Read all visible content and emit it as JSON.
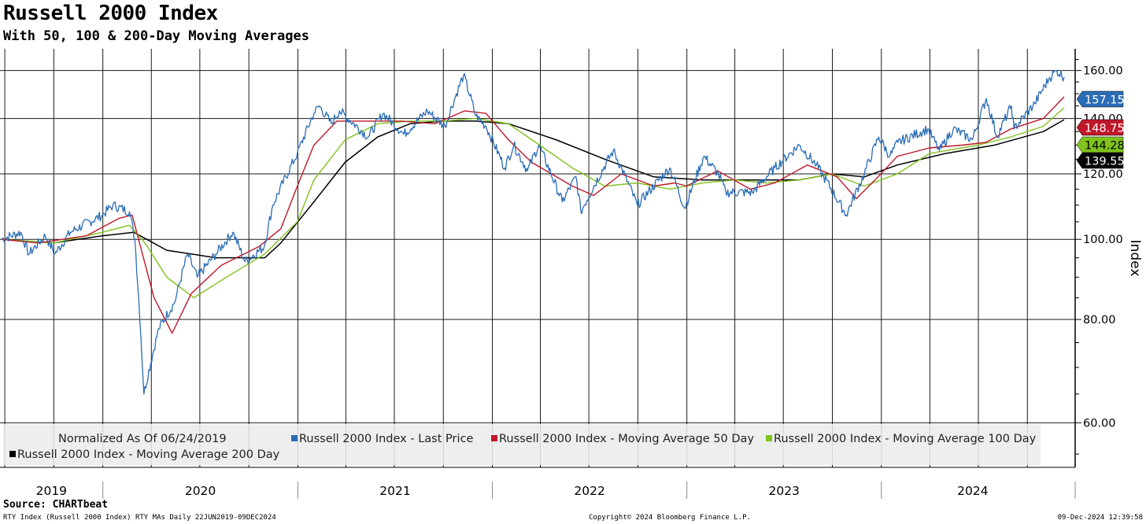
{
  "title": "Russell 2000 Index",
  "subtitle": "With 50, 100 & 200-Day Moving Averages",
  "source": "Source: CHARTbeat",
  "footer": {
    "left": "RTY Index (Russell 2000 Index) RTY MAs  Daily 22JUN2019-09DEC2024",
    "center": "Copyright© 2024 Bloomberg Finance L.P.",
    "right": "09-Dec-2024 12:39:58"
  },
  "colors": {
    "price": "#2a6cb5",
    "ma50": "#c0182a",
    "ma100": "#7fc31c",
    "ma200": "#000000"
  },
  "chart_data": {
    "type": "line",
    "ylabel": "Index",
    "ylim": [
      53,
      170
    ],
    "y_scale": "log",
    "y_ticks": [
      "60.00",
      "80.00",
      "100.00",
      "120.00",
      "140.00",
      "160.00"
    ],
    "y_tick_values": [
      60,
      80,
      100,
      120,
      140,
      160
    ],
    "x_range": [
      "2019-06-22",
      "2024-12-09"
    ],
    "x_year_labels": [
      "2019",
      "2020",
      "2021",
      "2022",
      "2023",
      "2024"
    ],
    "grid": true,
    "legend_placement": "bottom-left",
    "legend_note": "Normalized As Of 06/24/2019",
    "last_value_labels": [
      {
        "series": "price",
        "value": 157.15,
        "text": "157.15"
      },
      {
        "series": "ma50",
        "value": 148.75,
        "text": "148.75"
      },
      {
        "series": "ma100",
        "value": 144.28,
        "text": "144.28"
      },
      {
        "series": "ma200",
        "value": 139.55,
        "text": "139.55"
      }
    ],
    "series": [
      {
        "key": "price",
        "name": "Russell 2000 Index - Last Price",
        "points": [
          [
            "2019-06-24",
            100
          ],
          [
            "2019-07-31",
            102
          ],
          [
            "2019-08-15",
            96
          ],
          [
            "2019-09-15",
            101
          ],
          [
            "2019-10-03",
            96
          ],
          [
            "2019-11-01",
            102
          ],
          [
            "2019-12-31",
            107
          ],
          [
            "2020-01-20",
            110
          ],
          [
            "2020-02-20",
            108
          ],
          [
            "2020-03-01",
            100
          ],
          [
            "2020-03-18",
            65
          ],
          [
            "2020-04-15",
            78
          ],
          [
            "2020-05-15",
            84
          ],
          [
            "2020-06-08",
            96
          ],
          [
            "2020-06-26",
            90
          ],
          [
            "2020-07-31",
            96
          ],
          [
            "2020-09-01",
            102
          ],
          [
            "2020-09-24",
            94
          ],
          [
            "2020-10-30",
            98
          ],
          [
            "2020-11-15",
            110
          ],
          [
            "2020-12-31",
            127
          ],
          [
            "2021-01-31",
            142
          ],
          [
            "2021-02-10",
            145
          ],
          [
            "2021-03-05",
            138
          ],
          [
            "2021-03-20",
            143
          ],
          [
            "2021-05-13",
            133
          ],
          [
            "2021-06-10",
            142
          ],
          [
            "2021-07-19",
            134
          ],
          [
            "2021-09-01",
            143
          ],
          [
            "2021-10-04",
            137
          ],
          [
            "2021-11-08",
            158
          ],
          [
            "2021-12-01",
            141
          ],
          [
            "2021-12-20",
            137
          ],
          [
            "2022-01-24",
            122
          ],
          [
            "2022-02-10",
            130
          ],
          [
            "2022-03-08",
            121
          ],
          [
            "2022-03-29",
            130
          ],
          [
            "2022-05-12",
            111
          ],
          [
            "2022-06-07",
            119
          ],
          [
            "2022-06-16",
            108
          ],
          [
            "2022-08-16",
            128
          ],
          [
            "2022-09-30",
            110
          ],
          [
            "2022-11-30",
            122
          ],
          [
            "2022-12-28",
            109
          ],
          [
            "2023-02-02",
            126
          ],
          [
            "2023-03-01",
            120
          ],
          [
            "2023-03-15",
            114
          ],
          [
            "2023-05-04",
            114
          ],
          [
            "2023-06-15",
            122
          ],
          [
            "2023-07-31",
            130
          ],
          [
            "2023-09-01",
            123
          ],
          [
            "2023-10-27",
            107
          ],
          [
            "2023-11-30",
            120
          ],
          [
            "2023-12-27",
            133
          ],
          [
            "2024-01-17",
            126
          ],
          [
            "2024-02-01",
            131
          ],
          [
            "2024-03-28",
            136
          ],
          [
            "2024-04-19",
            128
          ],
          [
            "2024-05-15",
            136
          ],
          [
            "2024-06-20",
            132
          ],
          [
            "2024-07-16",
            148
          ],
          [
            "2024-08-05",
            133
          ],
          [
            "2024-09-01",
            145
          ],
          [
            "2024-09-06",
            136
          ],
          [
            "2024-10-15",
            146
          ],
          [
            "2024-11-12",
            157
          ],
          [
            "2024-11-25",
            160
          ],
          [
            "2024-12-09",
            157.15
          ]
        ]
      },
      {
        "key": "ma50",
        "name": "Russell 2000 Index - Moving Average 50 Day",
        "points": [
          [
            "2019-06-24",
            100
          ],
          [
            "2019-09-01",
            99
          ],
          [
            "2019-12-01",
            101
          ],
          [
            "2020-01-31",
            106
          ],
          [
            "2020-02-25",
            107
          ],
          [
            "2020-04-06",
            85
          ],
          [
            "2020-05-10",
            77
          ],
          [
            "2020-06-15",
            86
          ],
          [
            "2020-08-10",
            93
          ],
          [
            "2020-10-20",
            98
          ],
          [
            "2020-11-30",
            103
          ],
          [
            "2020-12-31",
            116
          ],
          [
            "2021-01-31",
            130
          ],
          [
            "2021-03-15",
            139
          ],
          [
            "2021-05-15",
            139
          ],
          [
            "2021-07-15",
            139
          ],
          [
            "2021-09-15",
            138
          ],
          [
            "2021-11-10",
            143
          ],
          [
            "2021-12-20",
            142
          ],
          [
            "2022-01-31",
            132
          ],
          [
            "2022-03-15",
            124
          ],
          [
            "2022-05-31",
            116
          ],
          [
            "2022-07-10",
            113
          ],
          [
            "2022-08-31",
            120
          ],
          [
            "2022-10-31",
            116
          ],
          [
            "2022-12-10",
            117
          ],
          [
            "2022-12-31",
            116
          ],
          [
            "2023-02-28",
            121
          ],
          [
            "2023-04-30",
            115
          ],
          [
            "2023-06-15",
            117
          ],
          [
            "2023-08-15",
            123
          ],
          [
            "2023-10-10",
            119
          ],
          [
            "2023-11-15",
            112
          ],
          [
            "2023-12-20",
            118
          ],
          [
            "2024-01-31",
            126
          ],
          [
            "2024-03-31",
            129
          ],
          [
            "2024-05-31",
            130
          ],
          [
            "2024-07-15",
            131
          ],
          [
            "2024-08-31",
            136
          ],
          [
            "2024-10-31",
            140
          ],
          [
            "2024-12-09",
            148.75
          ]
        ]
      },
      {
        "key": "ma100",
        "name": "Russell 2000 Index - Moving Average 100 Day",
        "points": [
          [
            "2019-06-24",
            100
          ],
          [
            "2019-10-01",
            99
          ],
          [
            "2019-12-31",
            102
          ],
          [
            "2020-02-20",
            104
          ],
          [
            "2020-03-20",
            99
          ],
          [
            "2020-04-30",
            90
          ],
          [
            "2020-06-20",
            85
          ],
          [
            "2020-08-20",
            90
          ],
          [
            "2020-10-31",
            96
          ],
          [
            "2020-12-31",
            105
          ],
          [
            "2021-01-31",
            118
          ],
          [
            "2021-03-31",
            132
          ],
          [
            "2021-05-31",
            138
          ],
          [
            "2021-07-31",
            139
          ],
          [
            "2021-09-30",
            139
          ],
          [
            "2021-11-30",
            140
          ],
          [
            "2022-01-31",
            138
          ],
          [
            "2022-03-31",
            130
          ],
          [
            "2022-05-31",
            122
          ],
          [
            "2022-07-31",
            116
          ],
          [
            "2022-09-30",
            117
          ],
          [
            "2022-11-30",
            115
          ],
          [
            "2023-01-31",
            117
          ],
          [
            "2023-03-31",
            118
          ],
          [
            "2023-05-31",
            117
          ],
          [
            "2023-07-31",
            118
          ],
          [
            "2023-09-30",
            120
          ],
          [
            "2023-11-30",
            116
          ],
          [
            "2024-01-31",
            120
          ],
          [
            "2024-03-31",
            127
          ],
          [
            "2024-06-30",
            130
          ],
          [
            "2024-08-31",
            133
          ],
          [
            "2024-10-31",
            137
          ],
          [
            "2024-12-09",
            144.28
          ]
        ]
      },
      {
        "key": "ma200",
        "name": "Russell 2000 Index - Moving Average 200 Day",
        "points": [
          [
            "2019-06-24",
            100
          ],
          [
            "2019-09-30",
            99
          ],
          [
            "2019-12-31",
            101
          ],
          [
            "2020-02-28",
            102
          ],
          [
            "2020-04-30",
            97
          ],
          [
            "2020-07-31",
            95
          ],
          [
            "2020-10-31",
            95
          ],
          [
            "2020-11-30",
            99
          ],
          [
            "2021-01-31",
            111
          ],
          [
            "2021-03-31",
            124
          ],
          [
            "2021-05-31",
            133
          ],
          [
            "2021-07-31",
            138
          ],
          [
            "2021-09-30",
            139
          ],
          [
            "2021-11-30",
            139
          ],
          [
            "2022-01-31",
            138
          ],
          [
            "2022-04-30",
            132
          ],
          [
            "2022-07-31",
            125
          ],
          [
            "2022-10-31",
            119
          ],
          [
            "2023-01-31",
            118
          ],
          [
            "2023-04-30",
            118
          ],
          [
            "2023-07-31",
            118
          ],
          [
            "2023-09-30",
            120
          ],
          [
            "2023-11-30",
            119
          ],
          [
            "2024-01-31",
            123
          ],
          [
            "2024-04-30",
            127
          ],
          [
            "2024-07-31",
            130
          ],
          [
            "2024-10-31",
            135
          ],
          [
            "2024-12-09",
            139.55
          ]
        ]
      }
    ]
  }
}
